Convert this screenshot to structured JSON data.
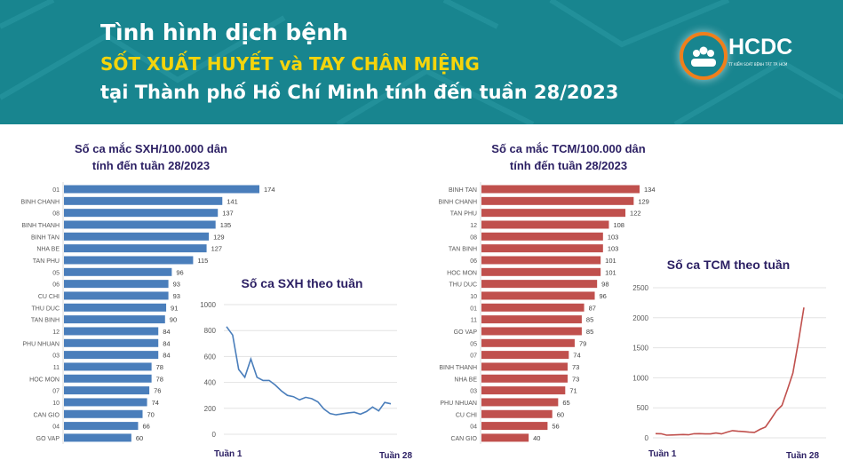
{
  "header": {
    "line1": "Tình hình dịch bệnh",
    "line2": "SỐT XUẤT HUYẾT và TAY CHÂN MIỆNG",
    "line3": "tại Thành phố Hồ Chí Minh tính đến tuần 28/2023",
    "logo_name": "HCDC",
    "logo_sub": "TT KIỂM SOÁT BỆNH TẬT TP. HCM"
  },
  "colors": {
    "header_bg": "#18858f",
    "highlight": "#f4d40c",
    "sxh": "#4a7ebb",
    "tcm": "#c0504d",
    "title": "#2b1f63"
  },
  "chart_data": [
    {
      "type": "bar",
      "orientation": "horizontal",
      "title": "Số ca mắc SXH/100.000 dân",
      "subtitle": "tính đến tuần 28/2023",
      "categories": [
        "01",
        "BINH CHANH",
        "08",
        "BINH THANH",
        "BINH TAN",
        "NHA BE",
        "TAN PHU",
        "05",
        "06",
        "CU CHI",
        "THU DUC",
        "TAN BINH",
        "12",
        "PHU NHUAN",
        "03",
        "11",
        "HOC MON",
        "07",
        "10",
        "CAN GIO",
        "04",
        "GO VAP"
      ],
      "values": [
        174,
        141,
        137,
        135,
        129,
        127,
        115,
        96,
        93,
        93,
        91,
        90,
        84,
        84,
        84,
        78,
        78,
        76,
        74,
        70,
        66,
        60
      ],
      "color": "#4a7ebb"
    },
    {
      "type": "line",
      "title": "Số ca SXH theo tuần",
      "x_labels": [
        "Tuần 1",
        "Tuần 28"
      ],
      "x": [
        1,
        2,
        3,
        4,
        5,
        6,
        7,
        8,
        9,
        10,
        11,
        12,
        13,
        14,
        15,
        16,
        17,
        18,
        19,
        20,
        21,
        22,
        23,
        24,
        25,
        26,
        27,
        28
      ],
      "values": [
        830,
        765,
        500,
        440,
        580,
        440,
        415,
        415,
        380,
        335,
        300,
        290,
        265,
        285,
        275,
        250,
        195,
        160,
        150,
        158,
        165,
        170,
        155,
        175,
        210,
        180,
        245,
        235
      ],
      "ylim": [
        0,
        1000
      ],
      "yticks": [
        "0",
        "200",
        "400",
        "600",
        "800",
        "1000"
      ],
      "grid": true,
      "color": "#4a7ebb"
    },
    {
      "type": "bar",
      "orientation": "horizontal",
      "title": "Số ca mắc TCM/100.000 dân",
      "subtitle": "tính đến tuần 28/2023",
      "categories": [
        "BINH TAN",
        "BINH CHANH",
        "TAN PHU",
        "12",
        "08",
        "TAN BINH",
        "06",
        "HOC MON",
        "THU DUC",
        "10",
        "01",
        "11",
        "GO VAP",
        "05",
        "07",
        "BINH THANH",
        "NHA BE",
        "03",
        "PHU NHUAN",
        "CU CHI",
        "04",
        "CAN GIO"
      ],
      "values": [
        134,
        129,
        122,
        108,
        103,
        103,
        101,
        101,
        98,
        96,
        87,
        85,
        85,
        79,
        74,
        73,
        73,
        71,
        65,
        60,
        56,
        40
      ],
      "color": "#c0504d"
    },
    {
      "type": "line",
      "title": "Số ca TCM theo tuần",
      "x_labels": [
        "Tuần 1",
        "Tuần 28"
      ],
      "x": [
        1,
        2,
        3,
        4,
        5,
        6,
        7,
        8,
        9,
        10,
        11,
        12,
        13,
        14,
        15,
        16,
        17,
        18,
        19,
        20,
        21,
        22,
        23,
        24,
        25,
        26,
        27,
        28
      ],
      "values": [
        70,
        68,
        45,
        48,
        50,
        55,
        50,
        68,
        70,
        65,
        65,
        80,
        65,
        95,
        120,
        110,
        105,
        95,
        90,
        140,
        180,
        310,
        450,
        540,
        800,
        1080,
        1600,
        2170
      ],
      "ylim": [
        0,
        2500
      ],
      "yticks": [
        "0",
        "500",
        "1000",
        "1500",
        "2000",
        "2500"
      ],
      "grid": true,
      "color": "#c0504d"
    }
  ]
}
